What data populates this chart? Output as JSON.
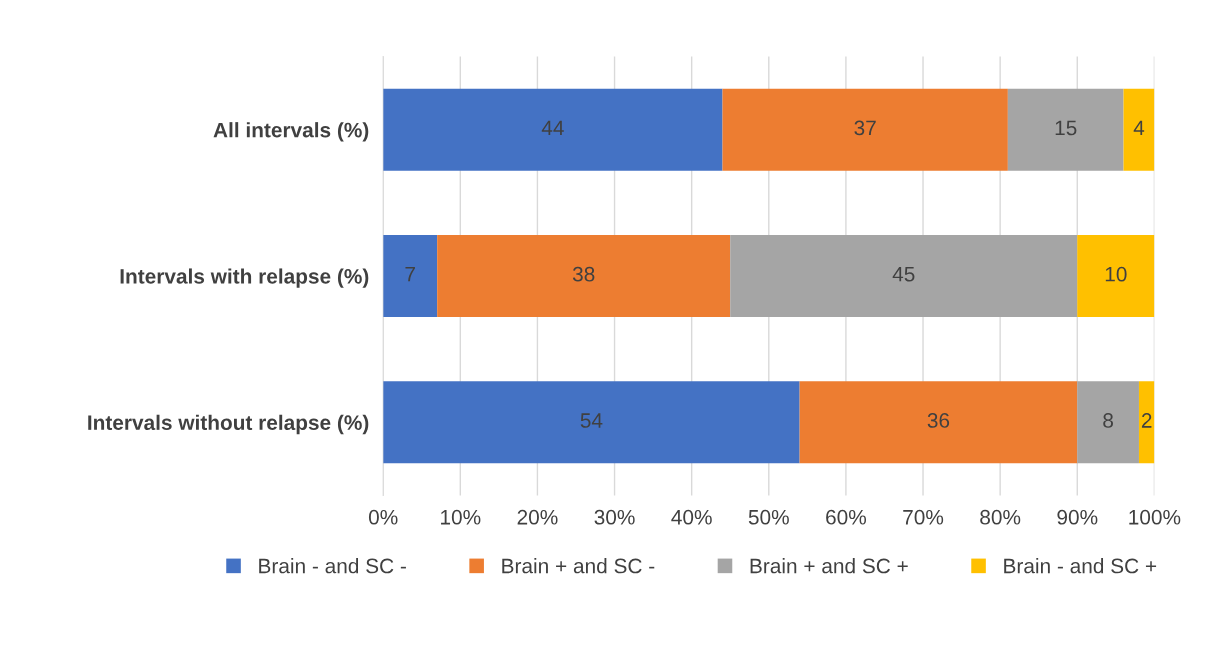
{
  "chart_data": {
    "type": "bar",
    "orientation": "horizontal",
    "stacked": true,
    "categories": [
      "All intervals (%)",
      "Intervals with relapse (%)",
      "Intervals without relapse (%)"
    ],
    "series": [
      {
        "name": "Brain - and SC -",
        "color": "#4472c4",
        "values": [
          44,
          7,
          54
        ]
      },
      {
        "name": "Brain + and SC -",
        "color": "#ed7d31",
        "values": [
          37,
          38,
          36
        ]
      },
      {
        "name": "Brain + and SC +",
        "color": "#a5a5a5",
        "values": [
          15,
          45,
          8
        ]
      },
      {
        "name": "Brain - and SC +",
        "color": "#ffc000",
        "values": [
          4,
          10,
          2
        ]
      }
    ],
    "xlim": [
      0,
      100
    ],
    "xticks": [
      {
        "value": 0,
        "label": "0%"
      },
      {
        "value": 10,
        "label": "10%"
      },
      {
        "value": 20,
        "label": "20%"
      },
      {
        "value": 30,
        "label": "30%"
      },
      {
        "value": 40,
        "label": "40%"
      },
      {
        "value": 50,
        "label": "50%"
      },
      {
        "value": 60,
        "label": "60%"
      },
      {
        "value": 70,
        "label": "70%"
      },
      {
        "value": 80,
        "label": "80%"
      },
      {
        "value": 90,
        "label": "90%"
      },
      {
        "value": 100,
        "label": "100%"
      }
    ],
    "grid": "x",
    "legend": "bottom",
    "data_labels": true
  }
}
